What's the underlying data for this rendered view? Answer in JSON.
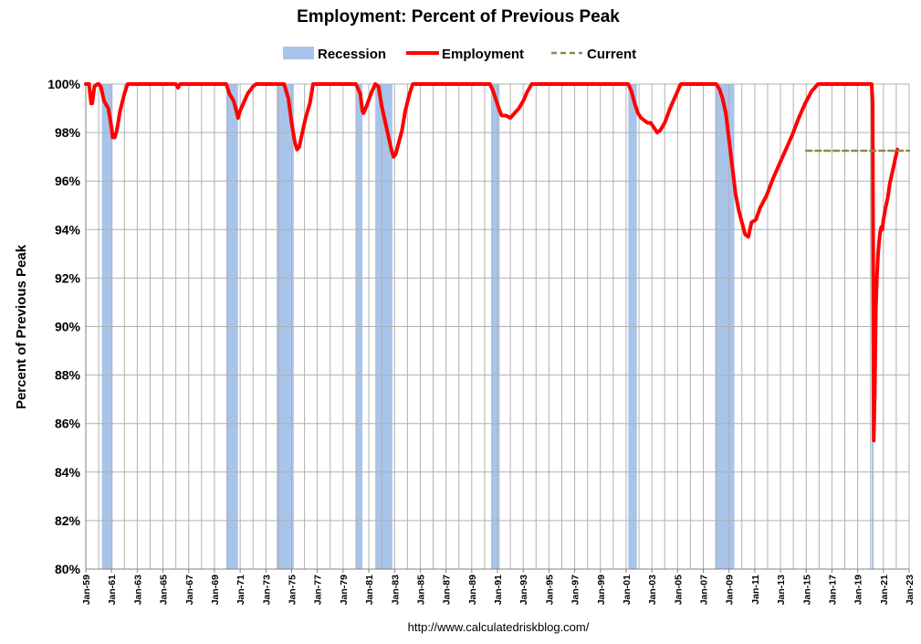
{
  "chart_data": {
    "type": "line",
    "title": "Employment: Percent of Previous Peak",
    "ylabel": "Percent of Previous Peak",
    "xlabel": "",
    "source": "http://www.calculatedriskblog.com/",
    "ylim": [
      80,
      100
    ],
    "xlim": [
      "1959-01",
      "2023-01"
    ],
    "y_ticks": [
      "80%",
      "82%",
      "84%",
      "86%",
      "88%",
      "90%",
      "92%",
      "94%",
      "96%",
      "98%",
      "100%"
    ],
    "x_ticks": [
      "Jan-59",
      "Jan-61",
      "Jan-63",
      "Jan-65",
      "Jan-67",
      "Jan-69",
      "Jan-71",
      "Jan-73",
      "Jan-75",
      "Jan-77",
      "Jan-79",
      "Jan-81",
      "Jan-83",
      "Jan-85",
      "Jan-87",
      "Jan-89",
      "Jan-91",
      "Jan-93",
      "Jan-95",
      "Jan-97",
      "Jan-99",
      "Jan-01",
      "Jan-03",
      "Jan-05",
      "Jan-07",
      "Jan-09",
      "Jan-11",
      "Jan-13",
      "Jan-15",
      "Jan-17",
      "Jan-19",
      "Jan-21",
      "Jan-23"
    ],
    "grid": true,
    "legend": {
      "placement": "top-center",
      "items": [
        {
          "name": "Recession",
          "color": "#a9c4ea"
        },
        {
          "name": "Employment",
          "color": "#ff0000"
        },
        {
          "name": "Current",
          "color": "#8b8a4a"
        }
      ]
    },
    "recessions": [
      [
        "1960-04",
        "1961-02"
      ],
      [
        "1969-12",
        "1970-11"
      ],
      [
        "1973-11",
        "1975-03"
      ],
      [
        "1980-01",
        "1980-07"
      ],
      [
        "1981-07",
        "1982-11"
      ],
      [
        "1990-07",
        "1991-03"
      ],
      [
        "2001-03",
        "2001-11"
      ],
      [
        "2007-12",
        "2009-06"
      ],
      [
        "2020-02",
        "2020-04"
      ]
    ],
    "series": [
      {
        "name": "Employment",
        "color": "#ff0000",
        "points": [
          [
            "1959-01",
            100
          ],
          [
            "1959-04",
            100
          ],
          [
            "1959-06",
            99.2
          ],
          [
            "1959-07",
            99.2
          ],
          [
            "1959-09",
            99.9
          ],
          [
            "1959-12",
            100
          ],
          [
            "1960-01",
            100
          ],
          [
            "1960-03",
            99.9
          ],
          [
            "1960-06",
            99.3
          ],
          [
            "1960-10",
            99.0
          ],
          [
            "1961-01",
            98.2
          ],
          [
            "1961-02",
            97.8
          ],
          [
            "1961-04",
            97.8
          ],
          [
            "1961-06",
            98.1
          ],
          [
            "1961-09",
            98.9
          ],
          [
            "1962-01",
            99.6
          ],
          [
            "1962-04",
            100
          ],
          [
            "1966-01",
            100
          ],
          [
            "1966-03",
            99.85
          ],
          [
            "1966-05",
            100
          ],
          [
            "1969-12",
            100
          ],
          [
            "1970-03",
            99.6
          ],
          [
            "1970-07",
            99.3
          ],
          [
            "1970-10",
            98.8
          ],
          [
            "1970-11",
            98.6
          ],
          [
            "1971-01",
            98.9
          ],
          [
            "1971-04",
            99.2
          ],
          [
            "1971-08",
            99.6
          ],
          [
            "1972-01",
            99.9
          ],
          [
            "1972-04",
            100
          ],
          [
            "1974-06",
            100
          ],
          [
            "1974-10",
            99.4
          ],
          [
            "1975-01",
            98.4
          ],
          [
            "1975-04",
            97.6
          ],
          [
            "1975-06",
            97.3
          ],
          [
            "1975-08",
            97.4
          ],
          [
            "1975-10",
            97.8
          ],
          [
            "1976-02",
            98.6
          ],
          [
            "1976-06",
            99.2
          ],
          [
            "1976-09",
            100
          ],
          [
            "1980-01",
            100
          ],
          [
            "1980-05",
            99.6
          ],
          [
            "1980-07",
            98.9
          ],
          [
            "1980-08",
            98.8
          ],
          [
            "1980-11",
            99.1
          ],
          [
            "1981-03",
            99.6
          ],
          [
            "1981-07",
            100
          ],
          [
            "1981-10",
            99.9
          ],
          [
            "1982-01",
            99.1
          ],
          [
            "1982-04",
            98.5
          ],
          [
            "1982-07",
            97.9
          ],
          [
            "1982-10",
            97.3
          ],
          [
            "1982-12",
            97.0
          ],
          [
            "1983-02",
            97.1
          ],
          [
            "1983-05",
            97.6
          ],
          [
            "1983-08",
            98.1
          ],
          [
            "1983-11",
            98.9
          ],
          [
            "1984-03",
            99.6
          ],
          [
            "1984-06",
            100
          ],
          [
            "1990-06",
            100
          ],
          [
            "1990-09",
            99.7
          ],
          [
            "1990-12",
            99.3
          ],
          [
            "1991-03",
            98.9
          ],
          [
            "1991-05",
            98.7
          ],
          [
            "1991-09",
            98.7
          ],
          [
            "1992-01",
            98.6
          ],
          [
            "1992-05",
            98.8
          ],
          [
            "1992-09",
            99.0
          ],
          [
            "1993-01",
            99.3
          ],
          [
            "1993-05",
            99.7
          ],
          [
            "1993-09",
            100
          ],
          [
            "2001-03",
            100
          ],
          [
            "2001-06",
            99.7
          ],
          [
            "2001-09",
            99.2
          ],
          [
            "2001-12",
            98.8
          ],
          [
            "2002-03",
            98.6
          ],
          [
            "2002-06",
            98.5
          ],
          [
            "2002-09",
            98.4
          ],
          [
            "2002-12",
            98.4
          ],
          [
            "2003-03",
            98.2
          ],
          [
            "2003-06",
            98.0
          ],
          [
            "2003-09",
            98.1
          ],
          [
            "2004-01",
            98.4
          ],
          [
            "2004-06",
            99.0
          ],
          [
            "2004-12",
            99.6
          ],
          [
            "2005-04",
            100
          ],
          [
            "2008-01",
            100
          ],
          [
            "2008-04",
            99.8
          ],
          [
            "2008-07",
            99.4
          ],
          [
            "2008-10",
            98.8
          ],
          [
            "2009-01",
            97.7
          ],
          [
            "2009-04",
            96.6
          ],
          [
            "2009-07",
            95.5
          ],
          [
            "2009-10",
            94.8
          ],
          [
            "2010-01",
            94.3
          ],
          [
            "2010-04",
            93.8
          ],
          [
            "2010-07",
            93.7
          ],
          [
            "2010-10",
            94.3
          ],
          [
            "2011-02",
            94.4
          ],
          [
            "2011-06",
            94.9
          ],
          [
            "2011-12",
            95.4
          ],
          [
            "2012-06",
            96.1
          ],
          [
            "2012-12",
            96.7
          ],
          [
            "2013-06",
            97.3
          ],
          [
            "2013-12",
            97.9
          ],
          [
            "2014-06",
            98.6
          ],
          [
            "2014-12",
            99.2
          ],
          [
            "2015-06",
            99.7
          ],
          [
            "2015-12",
            100
          ],
          [
            "2020-02",
            100
          ],
          [
            "2020-03",
            99.2
          ],
          [
            "2020-04",
            85.3
          ],
          [
            "2020-05",
            87.4
          ],
          [
            "2020-06",
            90.8
          ],
          [
            "2020-07",
            92.1
          ],
          [
            "2020-08",
            93.0
          ],
          [
            "2020-09",
            93.5
          ],
          [
            "2020-10",
            93.9
          ],
          [
            "2020-11",
            94.1
          ],
          [
            "2020-12",
            94.0
          ],
          [
            "2021-01",
            94.4
          ],
          [
            "2021-03",
            94.9
          ],
          [
            "2021-05",
            95.3
          ],
          [
            "2021-07",
            95.9
          ],
          [
            "2021-09",
            96.3
          ],
          [
            "2021-11",
            96.7
          ],
          [
            "2022-01",
            97.1
          ],
          [
            "2022-02",
            97.3
          ]
        ]
      },
      {
        "name": "Current",
        "color": "#8b8a4a",
        "points": [
          [
            "2015-01",
            97.25
          ],
          [
            "2023-01",
            97.25
          ]
        ]
      }
    ]
  }
}
